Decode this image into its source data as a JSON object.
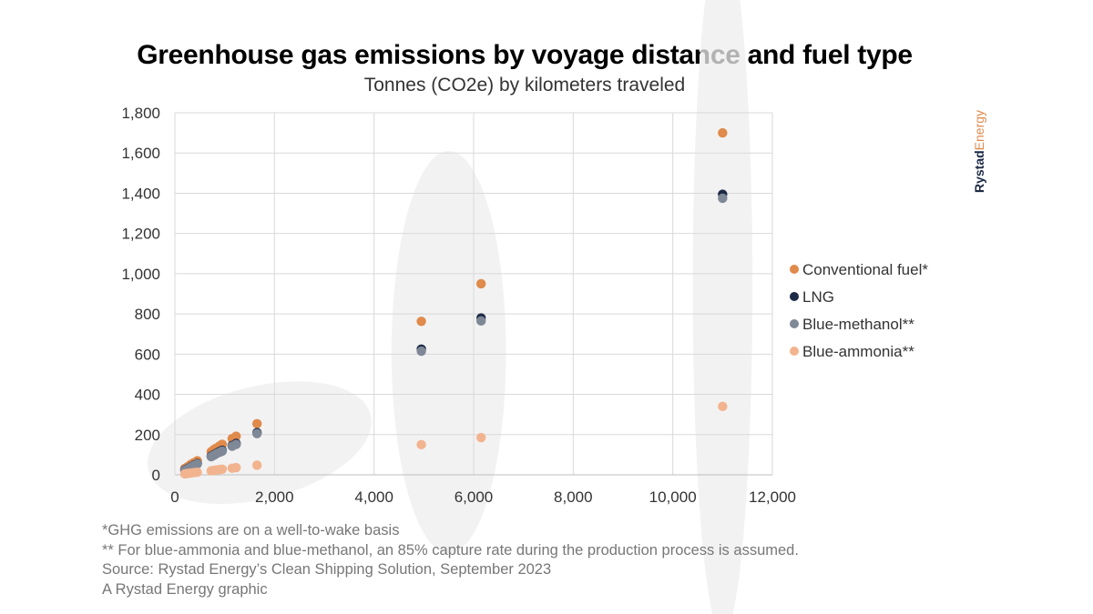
{
  "header": {
    "title": "Greenhouse gas emissions by voyage distance and fuel type",
    "subtitle": "Tonnes (CO2e) by kilometers traveled"
  },
  "brand": {
    "part1": "Rystad",
    "part2": "Energy"
  },
  "footnotes": [
    "*GHG emissions are on a well-to-wake basis",
    "** For blue-ammonia and blue-methanol, an 85% capture rate during the production process is assumed.",
    "Source: Rystad Energy’s Clean Shipping Solution, September 2023",
    "A Rystad Energy graphic"
  ],
  "chart_data": {
    "type": "scatter",
    "title": "Greenhouse gas emissions by voyage distance and fuel type",
    "subtitle": "Tonnes (CO2e) by kilometers traveled",
    "xlabel": "",
    "ylabel": "",
    "xlim": [
      0,
      12000
    ],
    "ylim": [
      0,
      1800
    ],
    "x_ticks": [
      0,
      2000,
      4000,
      6000,
      8000,
      10000,
      12000
    ],
    "x_tick_labels": [
      "0",
      "2,000",
      "4,000",
      "6,000",
      "8,000",
      "10,000",
      "12,000"
    ],
    "y_ticks": [
      0,
      200,
      400,
      600,
      800,
      1000,
      1200,
      1400,
      1600,
      1800
    ],
    "y_tick_labels": [
      "0",
      "200",
      "400",
      "600",
      "800",
      "1,000",
      "1,200",
      "1,400",
      "1,600",
      "1,800"
    ],
    "grid": true,
    "legend_position": "right",
    "background_ellipses": [
      {
        "cx": 1700,
        "cy": 160,
        "rx": 2300,
        "ry": 280,
        "rotation_deg": -14
      },
      {
        "cx": 5500,
        "cy": 610,
        "rx": 1150,
        "ry": 1000,
        "rotation_deg": 0
      },
      {
        "cx": 11000,
        "cy": 945,
        "rx": 600,
        "ry": 1740,
        "rotation_deg": 0
      }
    ],
    "series": [
      {
        "name": "Conventional fuel*",
        "color": "#e08a4b",
        "x": [
          200,
          260,
          320,
          380,
          450,
          730,
          780,
          830,
          900,
          950,
          1150,
          1230,
          1650,
          4950,
          6150,
          11000
        ],
        "y": [
          32,
          41,
          52,
          60,
          70,
          115,
          125,
          133,
          144,
          152,
          180,
          192,
          254,
          763,
          950,
          1700
        ]
      },
      {
        "name": "LNG",
        "color": "#1c2a45",
        "x": [
          200,
          260,
          320,
          380,
          450,
          730,
          780,
          830,
          900,
          950,
          1150,
          1230,
          1650,
          4950,
          6150,
          11000
        ],
        "y": [
          24,
          32,
          40,
          48,
          56,
          93,
          100,
          107,
          116,
          122,
          146,
          156,
          210,
          625,
          780,
          1395
        ]
      },
      {
        "name": "Blue-methanol**",
        "color": "#7f8896",
        "x": [
          200,
          260,
          320,
          380,
          450,
          730,
          780,
          830,
          900,
          950,
          1150,
          1230,
          1650,
          4950,
          6150,
          11000
        ],
        "y": [
          22,
          30,
          38,
          46,
          54,
          90,
          97,
          104,
          112,
          118,
          142,
          151,
          205,
          615,
          765,
          1375
        ]
      },
      {
        "name": "Blue-ammonia**",
        "color": "#f2b48f",
        "x": [
          200,
          260,
          320,
          380,
          450,
          730,
          780,
          830,
          900,
          950,
          1150,
          1230,
          1650,
          4950,
          6150,
          11000
        ],
        "y": [
          5,
          7,
          9,
          11,
          13,
          20,
          22,
          24,
          26,
          28,
          33,
          36,
          48,
          150,
          185,
          340
        ]
      }
    ]
  }
}
